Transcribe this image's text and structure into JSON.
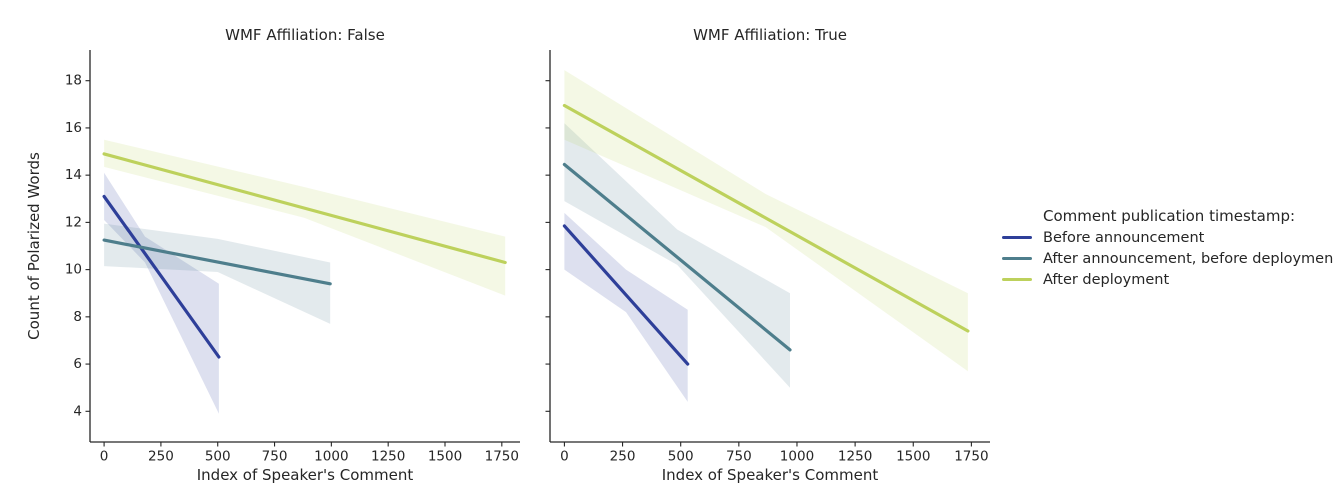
{
  "chart_data": {
    "type": "line",
    "description": "Faceted linear regression fits with translucent confidence bands",
    "xlabel": "Index of Speaker's Comment",
    "ylabel": "Count of Polarized Words",
    "x_ticks": [
      0,
      250,
      500,
      750,
      1000,
      1250,
      1500,
      1750
    ],
    "y_ticks": [
      4,
      6,
      8,
      10,
      12,
      14,
      16,
      18
    ],
    "xlim": [
      -62,
      1830
    ],
    "ylim": [
      2.7,
      19.3
    ],
    "grid": false,
    "legend": {
      "title": "Comment publication timestamp:",
      "position": "right",
      "entries": [
        {
          "label": "Before announcement",
          "color": "#2e3f99"
        },
        {
          "label": "After announcement, before deployment",
          "color": "#4e7e8c"
        },
        {
          "label": "After deployment",
          "color": "#bdd15c"
        }
      ]
    },
    "band_opacity": 0.16,
    "facets": [
      {
        "title": "WMF Affiliation: False",
        "series": [
          {
            "name": "Before announcement",
            "line": [
              [
                0,
                13.1
              ],
              [
                505,
                6.3
              ]
            ],
            "band": [
              [
                0,
                12.1,
                14.1
              ],
              [
                180,
                10.3,
                11.4
              ],
              [
                505,
                3.9,
                9.4
              ]
            ]
          },
          {
            "name": "After announcement, before deployment",
            "line": [
              [
                0,
                11.25
              ],
              [
                995,
                9.4
              ]
            ],
            "band": [
              [
                0,
                10.15,
                11.95
              ],
              [
                500,
                9.9,
                11.3
              ],
              [
                995,
                7.7,
                10.3
              ]
            ]
          },
          {
            "name": "After deployment",
            "line": [
              [
                0,
                14.9
              ],
              [
                1765,
                10.3
              ]
            ],
            "band": [
              [
                0,
                14.35,
                15.5
              ],
              [
                880,
                12.2,
                13.5
              ],
              [
                1765,
                8.9,
                11.4
              ]
            ]
          }
        ]
      },
      {
        "title": "WMF Affiliation: True",
        "series": [
          {
            "name": "Before announcement",
            "line": [
              [
                0,
                11.85
              ],
              [
                530,
                6.0
              ]
            ],
            "band": [
              [
                0,
                10.0,
                12.4
              ],
              [
                265,
                8.2,
                10.0
              ],
              [
                530,
                4.4,
                8.3
              ]
            ]
          },
          {
            "name": "After announcement, before deployment",
            "line": [
              [
                0,
                14.45
              ],
              [
                970,
                6.6
              ]
            ],
            "band": [
              [
                0,
                12.9,
                16.2
              ],
              [
                485,
                10.2,
                11.7
              ],
              [
                970,
                5.0,
                9.0
              ]
            ]
          },
          {
            "name": "After deployment",
            "line": [
              [
                0,
                16.95
              ],
              [
                1735,
                7.4
              ]
            ],
            "band": [
              [
                0,
                15.5,
                18.45
              ],
              [
                865,
                11.8,
                13.2
              ],
              [
                1735,
                5.7,
                9.0
              ]
            ]
          }
        ]
      }
    ]
  }
}
